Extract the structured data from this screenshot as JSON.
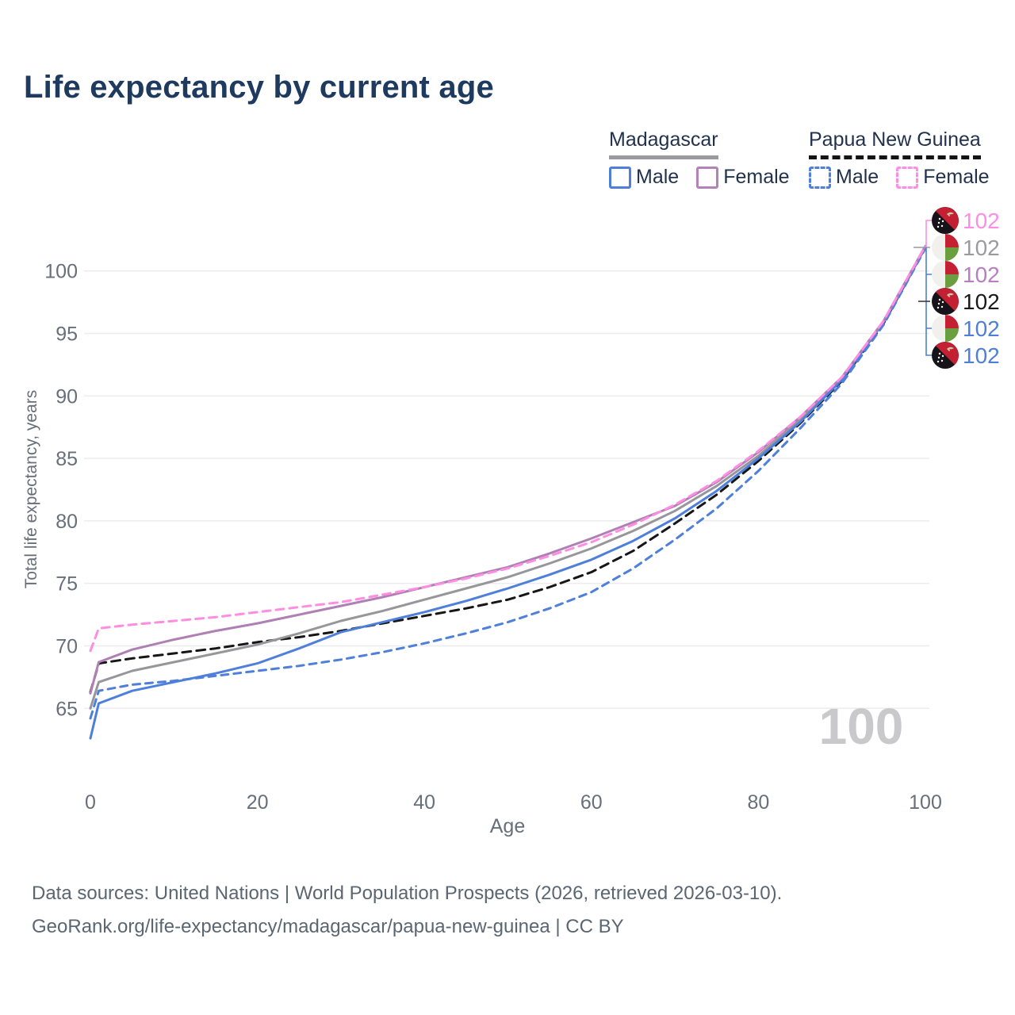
{
  "title": "Life expectancy by current age",
  "legend": {
    "groups": [
      {
        "label": "Madagascar",
        "underline": "solid",
        "underline_color": "#9a9aa0",
        "items": [
          {
            "label": "Male",
            "color": "#4d7fdb",
            "dashed": false
          },
          {
            "label": "Female",
            "color": "#b383b8",
            "dashed": false
          }
        ]
      },
      {
        "label": "Papua New Guinea",
        "underline": "dashed",
        "underline_color": "#141414",
        "items": [
          {
            "label": "Male",
            "color": "#4d7fdb",
            "dashed": true
          },
          {
            "label": "Female",
            "color": "#ff8de2",
            "dashed": true
          }
        ]
      }
    ]
  },
  "chart_data": {
    "type": "line",
    "title": "Life expectancy by current age",
    "xlabel": "Age",
    "ylabel": "Total life expectancy, years",
    "x_ticks": [
      0,
      20,
      40,
      60,
      80,
      100
    ],
    "y_ticks": [
      65,
      70,
      75,
      80,
      85,
      90,
      95,
      100
    ],
    "xlim": [
      0,
      100
    ],
    "ylim": [
      62,
      103
    ],
    "grid": "horizontal",
    "legend_position": "top-right",
    "x": [
      0,
      1,
      5,
      10,
      15,
      20,
      25,
      30,
      35,
      40,
      45,
      50,
      55,
      60,
      65,
      70,
      75,
      80,
      85,
      90,
      95,
      100
    ],
    "series": [
      {
        "id": "png_all",
        "name": "Papua New Guinea",
        "country": "Papua New Guinea",
        "sex": "Both",
        "color": "#161616",
        "dash": "dashed",
        "values": [
          66.3,
          68.6,
          69.0,
          69.4,
          69.8,
          70.3,
          70.7,
          71.2,
          71.8,
          72.4,
          73.0,
          73.7,
          74.7,
          75.9,
          77.6,
          79.8,
          82.1,
          84.8,
          87.8,
          91.2,
          95.8,
          101.9
        ]
      },
      {
        "id": "mdg_all",
        "name": "Madagascar",
        "country": "Madagascar",
        "sex": "Both",
        "color": "#96969b",
        "dash": "solid",
        "values": [
          65.0,
          67.1,
          68.0,
          68.7,
          69.4,
          70.1,
          71.0,
          72.0,
          72.8,
          73.7,
          74.6,
          75.5,
          76.6,
          77.8,
          79.2,
          80.8,
          82.8,
          85.2,
          88.1,
          91.4,
          95.9,
          101.9
        ]
      },
      {
        "id": "png_male",
        "name": "Papua New Guinea Male",
        "country": "Papua New Guinea",
        "sex": "Male",
        "color": "#4d7fdb",
        "dash": "dashed",
        "values": [
          64.2,
          66.4,
          66.9,
          67.2,
          67.6,
          68.0,
          68.4,
          68.9,
          69.5,
          70.2,
          71.0,
          71.9,
          73.0,
          74.3,
          76.2,
          78.5,
          81.0,
          84.0,
          87.4,
          91.0,
          95.7,
          101.8
        ]
      },
      {
        "id": "mdg_male",
        "name": "Madagascar Male",
        "country": "Madagascar",
        "sex": "Male",
        "color": "#4d7fdb",
        "dash": "solid",
        "values": [
          62.6,
          65.4,
          66.4,
          67.1,
          67.8,
          68.6,
          69.8,
          71.1,
          71.9,
          72.7,
          73.6,
          74.6,
          75.7,
          76.9,
          78.4,
          80.2,
          82.4,
          85.0,
          87.9,
          91.3,
          95.9,
          101.9
        ]
      },
      {
        "id": "mdg_female",
        "name": "Madagascar Female",
        "country": "Madagascar",
        "sex": "Female",
        "color": "#ae80b4",
        "dash": "solid",
        "values": [
          66.2,
          68.7,
          69.7,
          70.5,
          71.2,
          71.8,
          72.5,
          73.2,
          73.9,
          74.7,
          75.5,
          76.3,
          77.4,
          78.6,
          79.9,
          81.2,
          83.1,
          85.5,
          88.3,
          91.5,
          96.0,
          102.0
        ]
      },
      {
        "id": "png_female",
        "name": "Papua New Guinea Female",
        "country": "Papua New Guinea",
        "sex": "Female",
        "color": "#ff8de2",
        "dash": "dashed",
        "values": [
          69.6,
          71.4,
          71.7,
          72.0,
          72.3,
          72.7,
          73.1,
          73.5,
          74.1,
          74.7,
          75.4,
          76.2,
          77.2,
          78.3,
          79.7,
          81.3,
          83.2,
          85.6,
          88.3,
          91.5,
          96.0,
          102.0
        ]
      }
    ]
  },
  "end_labels": [
    {
      "flag": "png",
      "value": "102",
      "color": "#ff8de2"
    },
    {
      "flag": "mdg",
      "value": "102",
      "color": "#9a9aa0"
    },
    {
      "flag": "mdg",
      "value": "102",
      "color": "#b77fc0"
    },
    {
      "flag": "png",
      "value": "102",
      "color": "#1a1a1a"
    },
    {
      "flag": "mdg",
      "value": "102",
      "color": "#4d7fdb"
    },
    {
      "flag": "png",
      "value": "102",
      "color": "#4d7fdb"
    }
  ],
  "hover_age_watermark": "100",
  "flag_colors": {
    "red": "#c42033",
    "green": "#6b9e3e",
    "white": "#f2f0ed",
    "black": "#171419",
    "bird": "#cfc6a8"
  },
  "grid_color": "#ececee",
  "axis_text_color": "#676f7a",
  "watermark_color": "#c9c9cb",
  "footer": {
    "line1": "Data sources: United Nations | World Population Prospects (2026, retrieved 2026-03-10).",
    "line2": "GeoRank.org/life-expectancy/madagascar/papua-new-guinea | CC BY"
  }
}
